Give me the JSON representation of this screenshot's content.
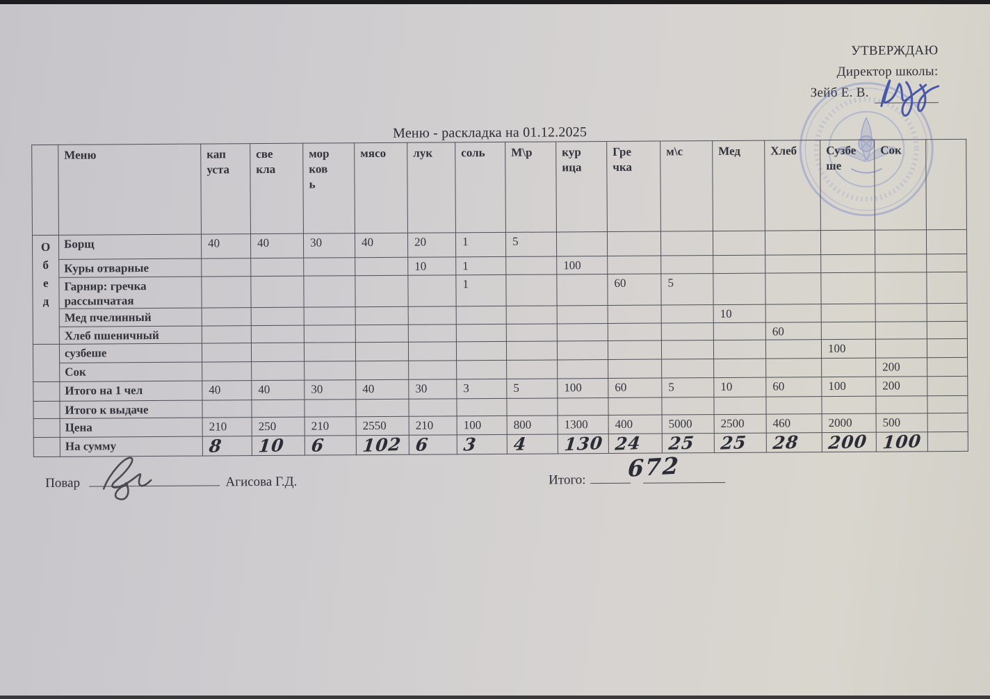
{
  "approval": {
    "line1": "УТВЕРЖДАЮ",
    "line2": "Директор школы:",
    "line3": "Зейб Е. В."
  },
  "title": "Меню - раскладка на 01.12.2025",
  "meal_label": "Обед",
  "table": {
    "headers": [
      "",
      "Меню",
      "кап\nуста",
      "све\nкла",
      "мор\nков\nь",
      "мясо",
      "лук",
      "соль",
      "М\\р",
      "кур\nица",
      "Гре\nчка",
      "м\\с",
      "Мед",
      "Хлеб",
      "Сузбе\nше",
      "Сок",
      ""
    ],
    "rows": [
      {
        "label": "Борщ",
        "values": [
          "40",
          "40",
          "30",
          "40",
          "20",
          "1",
          "5",
          "",
          "",
          "",
          "",
          "",
          "",
          ""
        ]
      },
      {
        "label": "Куры отварные",
        "values": [
          "",
          "",
          "",
          "",
          "10",
          "1",
          "",
          "100",
          "",
          "",
          "",
          "",
          "",
          ""
        ]
      },
      {
        "label": "Гарнир: гречка рассыпчатая",
        "values": [
          "",
          "",
          "",
          "",
          "",
          "1",
          "",
          "",
          "60",
          "5",
          "",
          "",
          "",
          ""
        ]
      },
      {
        "label": "Мед пчелинный",
        "values": [
          "",
          "",
          "",
          "",
          "",
          "",
          "",
          "",
          "",
          "",
          "10",
          "",
          "",
          ""
        ]
      },
      {
        "label": "Хлеб пшеничный",
        "values": [
          "",
          "",
          "",
          "",
          "",
          "",
          "",
          "",
          "",
          "",
          "",
          "60",
          "",
          ""
        ]
      },
      {
        "label": "сузбеше",
        "values": [
          "",
          "",
          "",
          "",
          "",
          "",
          "",
          "",
          "",
          "",
          "",
          "",
          "100",
          ""
        ]
      },
      {
        "label": "Сок",
        "values": [
          "",
          "",
          "",
          "",
          "",
          "",
          "",
          "",
          "",
          "",
          "",
          "",
          "",
          "200"
        ]
      },
      {
        "label": "Итого на 1 чел",
        "values": [
          "40",
          "40",
          "30",
          "40",
          "30",
          "3",
          "5",
          "100",
          "60",
          "5",
          "10",
          "60",
          "100",
          "200"
        ]
      },
      {
        "label": "Итого к выдаче",
        "values": [
          "",
          "",
          "",
          "",
          "",
          "",
          "",
          "",
          "",
          "",
          "",
          "",
          "",
          ""
        ]
      },
      {
        "label": "Цена",
        "values": [
          "210",
          "250",
          "210",
          "2550",
          "210",
          "100",
          "800",
          "1300",
          "400",
          "5000",
          "2500",
          "460",
          "2000",
          "500"
        ]
      },
      {
        "label": "На сумму",
        "values": [
          "8",
          "10",
          "6",
          "102",
          "6",
          "3",
          "4",
          "130",
          "24",
          "25",
          "25",
          "28",
          "200",
          "100"
        ],
        "handwritten": true
      }
    ]
  },
  "footer": {
    "cook_label": "Повар",
    "cook_name": "Агисова Г.Д.",
    "total_label": "Итого:",
    "total_value": "672"
  },
  "colors": {
    "stamp_ink": "#5f73c6",
    "director_pen_ink": "#3b4da6",
    "cook_pen_ink": "#45454d",
    "paper": "#d2d0cf"
  }
}
